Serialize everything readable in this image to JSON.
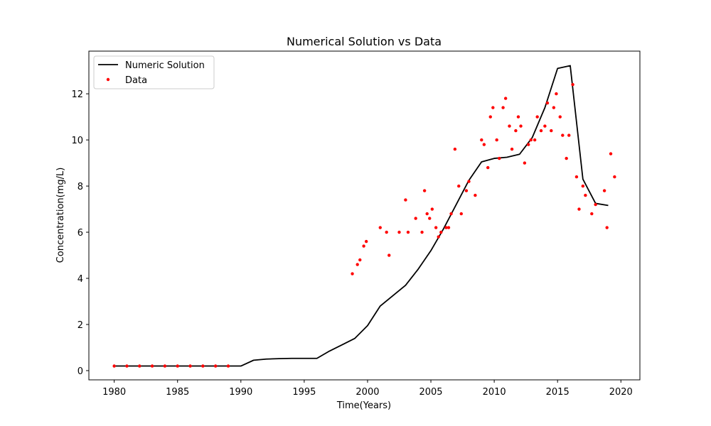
{
  "chart_data": {
    "type": "line",
    "title": "Numerical Solution vs Data",
    "xlabel": "Time(Years)",
    "ylabel": "Concentration(mg/L)",
    "xlim": [
      1978,
      2021.5
    ],
    "ylim": [
      -0.4,
      13.85
    ],
    "xticks": [
      1980,
      1985,
      1990,
      1995,
      2000,
      2005,
      2010,
      2015,
      2020
    ],
    "yticks": [
      0,
      2,
      4,
      6,
      8,
      10,
      12
    ],
    "grid": false,
    "legend_position": "top-left",
    "colors": {
      "line": "#000000",
      "points": "#ff0000"
    },
    "series": [
      {
        "name": "Numeric Solution",
        "type": "line",
        "x": [
          1980,
          1981,
          1982,
          1983,
          1984,
          1985,
          1986,
          1987,
          1988,
          1989,
          1990,
          1991,
          1992,
          1993,
          1994,
          1995,
          1996,
          1997,
          1998,
          1999,
          2000,
          2001,
          2002,
          2003,
          2004,
          2005,
          2006,
          2007,
          2008,
          2009,
          2010,
          2011,
          2012,
          2013,
          2014,
          2015,
          2016,
          2017,
          2018,
          2019
        ],
        "y": [
          0.2,
          0.2,
          0.2,
          0.2,
          0.2,
          0.2,
          0.2,
          0.2,
          0.2,
          0.2,
          0.2,
          0.45,
          0.5,
          0.52,
          0.53,
          0.53,
          0.53,
          0.85,
          1.12,
          1.4,
          1.95,
          2.8,
          3.25,
          3.7,
          4.4,
          5.2,
          6.15,
          7.2,
          8.25,
          9.05,
          9.2,
          9.25,
          9.38,
          10.1,
          11.4,
          13.1,
          13.22,
          8.3,
          7.25,
          7.16
        ]
      },
      {
        "name": "Data",
        "type": "scatter",
        "x": [
          1980,
          1981,
          1982,
          1983,
          1984,
          1985,
          1986,
          1987,
          1988,
          1989,
          1998.8,
          1999.2,
          1999.4,
          1999.7,
          1999.9,
          2001,
          2001.5,
          2001.7,
          2002.5,
          2003,
          2003.2,
          2003.8,
          2004.3,
          2004.5,
          2004.7,
          2004.9,
          2005.1,
          2005.4,
          2005.6,
          2005.8,
          2006.2,
          2006.4,
          2006.6,
          2006.9,
          2007.2,
          2007.4,
          2007.8,
          2008,
          2008.5,
          2009,
          2009.2,
          2009.5,
          2009.7,
          2009.9,
          2010.2,
          2010.4,
          2010.7,
          2010.9,
          2011.2,
          2011.4,
          2011.7,
          2011.9,
          2012.1,
          2012.4,
          2012.7,
          2012.9,
          2013.2,
          2013.4,
          2013.7,
          2014,
          2014.2,
          2014.5,
          2014.7,
          2014.9,
          2015.2,
          2015.4,
          2015.7,
          2015.9,
          2016.2,
          2016.5,
          2016.7,
          2017,
          2017.2,
          2017.7,
          2018,
          2018.7,
          2018.9,
          2019.2,
          2019.5
        ],
        "y": [
          0.2,
          0.2,
          0.2,
          0.2,
          0.2,
          0.2,
          0.2,
          0.2,
          0.2,
          0.2,
          4.2,
          4.6,
          4.8,
          5.4,
          5.6,
          6.2,
          6.0,
          5.0,
          6.0,
          7.4,
          6.0,
          6.6,
          6.0,
          7.8,
          6.8,
          6.6,
          7.0,
          6.2,
          5.8,
          6.0,
          6.2,
          6.2,
          6.8,
          9.6,
          8.0,
          6.8,
          7.8,
          8.2,
          7.6,
          10.0,
          9.8,
          8.8,
          11.0,
          11.4,
          10.0,
          9.2,
          11.4,
          11.8,
          10.6,
          9.6,
          10.4,
          11.0,
          10.6,
          9.0,
          9.8,
          10.0,
          10.0,
          11.0,
          10.4,
          10.6,
          11.6,
          10.4,
          11.4,
          12.0,
          11.0,
          10.2,
          9.2,
          10.2,
          12.4,
          8.4,
          7.0,
          8.0,
          7.6,
          6.8,
          7.2,
          7.8,
          6.2,
          9.4,
          8.4
        ]
      }
    ]
  }
}
